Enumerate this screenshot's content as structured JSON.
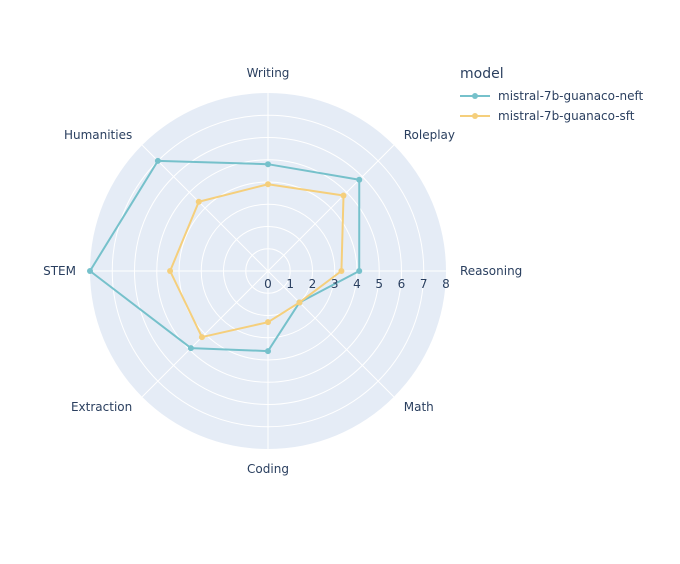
{
  "chart_data": {
    "type": "radar",
    "categories": [
      "Writing",
      "Roleplay",
      "Reasoning",
      "Math",
      "Coding",
      "Extraction",
      "STEM",
      "Humanities"
    ],
    "radial_ticks": [
      "0",
      "1",
      "2",
      "3",
      "4",
      "5",
      "6",
      "7",
      "8"
    ],
    "rlim": [
      0,
      8
    ],
    "legend_title": "model",
    "series": [
      {
        "name": "mistral-7b-guanaco-neft",
        "color": "#76c1cb",
        "values": [
          4.8,
          5.8,
          4.1,
          2.0,
          3.6,
          4.9,
          8.0,
          7.0
        ]
      },
      {
        "name": "mistral-7b-guanaco-sft",
        "color": "#f5cf7c",
        "values": [
          3.9,
          4.8,
          3.3,
          2.0,
          2.3,
          4.2,
          4.4,
          4.4
        ]
      }
    ]
  }
}
